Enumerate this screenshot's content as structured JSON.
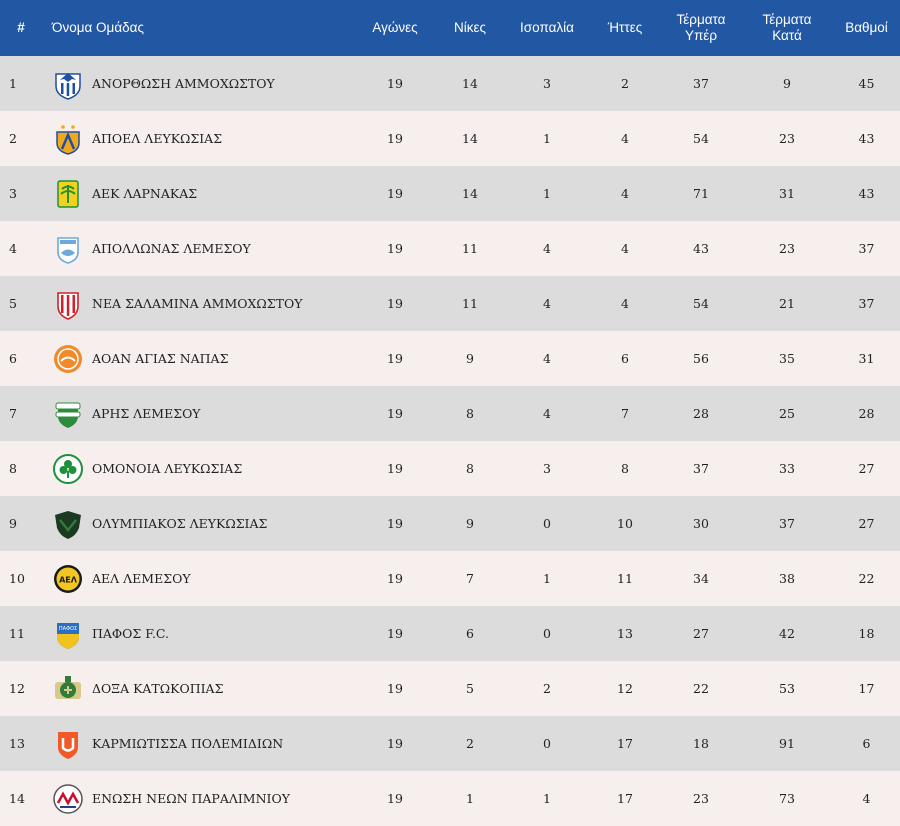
{
  "headers": {
    "rank": "#",
    "team": "Όνομα Ομάδας",
    "played": "Αγώνες",
    "wins": "Νίκες",
    "draws": "Ισοπαλία",
    "losses": "Ήττες",
    "goals_for_1": "Τέρματα",
    "goals_for_2": "Υπέρ",
    "goals_against_1": "Τέρματα",
    "goals_against_2": "Κατά",
    "points": "Βαθμοί"
  },
  "rows": [
    {
      "rank": "1",
      "team": "ΑΝΟΡΘΩΣΗ ΑΜΜΟΧΩΣΤΟΥ",
      "played": "19",
      "wins": "14",
      "draws": "3",
      "losses": "2",
      "gf": "37",
      "ga": "9",
      "pts": "45",
      "logo": {
        "icon": "anorthosis-crest-icon",
        "primary": "#1f4fa0",
        "secondary": "#ffffff",
        "text": ""
      }
    },
    {
      "rank": "2",
      "team": "ΑΠΟΕΛ ΛΕΥΚΩΣΙΑΣ",
      "played": "19",
      "wins": "14",
      "draws": "1",
      "losses": "4",
      "gf": "54",
      "ga": "23",
      "pts": "43",
      "logo": {
        "icon": "apoel-crest-icon",
        "primary": "#f2a81d",
        "secondary": "#1f4fa0",
        "text": ""
      }
    },
    {
      "rank": "3",
      "team": "ΑΕΚ ΛΑΡΝΑΚΑΣ",
      "played": "19",
      "wins": "14",
      "draws": "1",
      "losses": "4",
      "gf": "71",
      "ga": "31",
      "pts": "43",
      "logo": {
        "icon": "aek-larnaca-crest-icon",
        "primary": "#f4d11a",
        "secondary": "#1e8f3a",
        "text": ""
      }
    },
    {
      "rank": "4",
      "team": "ΑΠΟΛΛΩΝΑΣ ΛΕΜΕΣΟΥ",
      "played": "19",
      "wins": "11",
      "draws": "4",
      "losses": "4",
      "gf": "43",
      "ga": "23",
      "pts": "37",
      "logo": {
        "icon": "apollon-crest-icon",
        "primary": "#6fa9dc",
        "secondary": "#ffffff",
        "text": ""
      }
    },
    {
      "rank": "5",
      "team": "ΝΕΑ ΣΑΛΑΜΙΝΑ ΑΜΜΟΧΩΣΤΟΥ",
      "played": "19",
      "wins": "11",
      "draws": "4",
      "losses": "4",
      "gf": "54",
      "ga": "21",
      "pts": "37",
      "logo": {
        "icon": "nea-salamis-crest-icon",
        "primary": "#d4202a",
        "secondary": "#ffffff",
        "text": ""
      }
    },
    {
      "rank": "6",
      "team": "ΑΟΑΝ ΑΓΙΑΣ ΝΑΠΑΣ",
      "played": "19",
      "wins": "9",
      "draws": "4",
      "losses": "6",
      "gf": "56",
      "ga": "35",
      "pts": "31",
      "logo": {
        "icon": "ayia-napa-crest-icon",
        "primary": "#f08a2a",
        "secondary": "#ffffff",
        "text": ""
      }
    },
    {
      "rank": "7",
      "team": "ΑΡΗΣ ΛΕΜΕΣΟΥ",
      "played": "19",
      "wins": "8",
      "draws": "4",
      "losses": "7",
      "gf": "28",
      "ga": "25",
      "pts": "28",
      "logo": {
        "icon": "aris-crest-icon",
        "primary": "#2e8b3e",
        "secondary": "#ffffff",
        "text": ""
      }
    },
    {
      "rank": "8",
      "team": "ΟΜΟΝΟΙΑ ΛΕΥΚΩΣΙΑΣ",
      "played": "19",
      "wins": "8",
      "draws": "3",
      "losses": "8",
      "gf": "37",
      "ga": "33",
      "pts": "27",
      "logo": {
        "icon": "omonoia-shamrock-icon",
        "primary": "#1e8f3a",
        "secondary": "#ffffff",
        "text": ""
      }
    },
    {
      "rank": "9",
      "team": "ΟΛΥΜΠΙΑΚΟΣ ΛΕΥΚΩΣΙΑΣ",
      "played": "19",
      "wins": "9",
      "draws": "0",
      "losses": "10",
      "gf": "30",
      "ga": "37",
      "pts": "27",
      "logo": {
        "icon": "olympiakos-shield-icon",
        "primary": "#1c3a22",
        "secondary": "#2f7a3c",
        "text": ""
      }
    },
    {
      "rank": "10",
      "team": "ΑΕΛ ΛΕΜΕΣΟΥ",
      "played": "19",
      "wins": "7",
      "draws": "1",
      "losses": "11",
      "gf": "34",
      "ga": "38",
      "pts": "22",
      "logo": {
        "icon": "ael-crest-icon",
        "primary": "#f3c623",
        "secondary": "#1a1a1a",
        "text": "ΑΕΛ"
      }
    },
    {
      "rank": "11",
      "team": "ΠΑΦΟΣ F.C.",
      "played": "19",
      "wins": "6",
      "draws": "0",
      "losses": "13",
      "gf": "27",
      "ga": "42",
      "pts": "18",
      "logo": {
        "icon": "pafos-shield-icon",
        "primary": "#2a6fc2",
        "secondary": "#f2c21f",
        "text": "ΠΑΦΟΣ"
      }
    },
    {
      "rank": "12",
      "team": "ΔΟΞΑ ΚΑΤΩΚΟΠΙΑΣ",
      "played": "19",
      "wins": "5",
      "draws": "2",
      "losses": "12",
      "gf": "22",
      "ga": "53",
      "pts": "17",
      "logo": {
        "icon": "doxa-crest-icon",
        "primary": "#2e7d3a",
        "secondary": "#d8c98a",
        "text": ""
      }
    },
    {
      "rank": "13",
      "team": "ΚΑΡΜΙΩΤΙΣΣΑ ΠΟΛΕΜΙΔΙΩΝ",
      "played": "19",
      "wins": "2",
      "draws": "0",
      "losses": "17",
      "gf": "18",
      "ga": "91",
      "pts": "6",
      "logo": {
        "icon": "karmiotissa-shield-icon",
        "primary": "#f05a28",
        "secondary": "#ffffff",
        "text": ""
      }
    },
    {
      "rank": "14",
      "team": "ΕΝΩΣΗ ΝΕΩΝ ΠΑΡΑΛΙΜΝΙΟΥ",
      "played": "19",
      "wins": "1",
      "draws": "1",
      "losses": "17",
      "gf": "23",
      "ga": "73",
      "pts": "4",
      "logo": {
        "icon": "enp-crest-icon",
        "primary": "#c8102e",
        "secondary": "#1f3f8f",
        "text": ""
      }
    }
  ]
}
